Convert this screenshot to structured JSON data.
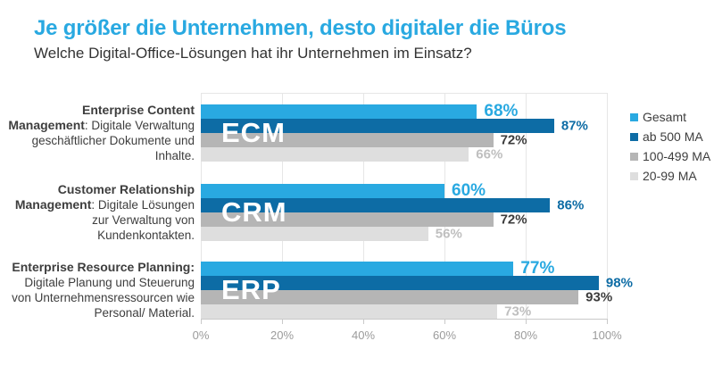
{
  "header": {
    "title": "Je größer die Unternehmen, desto digitaler die Büros",
    "subtitle": "Welche Digital-Office-Lösungen hat ihr Unternehmen im Einsatz?"
  },
  "colors": {
    "gesamt": "#29a9e1",
    "ab_500_ma": "#0d6ca5",
    "ma_100_499": "#b5b5b5",
    "ma_20_99": "#dedede",
    "title": "#29a9e1",
    "grid": "#e6e6e6",
    "axis_text": "#9b9b9b"
  },
  "chart_data": {
    "type": "bar",
    "orientation": "horizontal",
    "title": "Je größer die Unternehmen, desto digitaler die Büros",
    "subtitle": "Welche Digital-Office-Lösungen hat ihr Unternehmen im Einsatz?",
    "categories": [
      "ECM",
      "CRM",
      "ERP"
    ],
    "category_labels": [
      {
        "bold": "Enterprise Content Management",
        "rest": ": Digitale Verwaltung geschäftlicher Dokumente und Inhalte.",
        "watermark": "ECM"
      },
      {
        "bold": "Customer Relationship Management",
        "rest": ": Digitale Lösungen zur Verwaltung von Kundenkontakten.",
        "watermark": "CRM"
      },
      {
        "bold": "Enterprise Resource Planning:",
        "rest": " Digitale Planung und Steuerung von Unternehmensressourcen wie Personal/ Material.",
        "watermark": "ERP"
      }
    ],
    "series": [
      {
        "name": "Gesamt",
        "values": [
          68,
          60,
          77
        ],
        "color": "#29a9e1",
        "label_color": "#29a9e1"
      },
      {
        "name": "ab 500 MA",
        "values": [
          87,
          86,
          98
        ],
        "color": "#0d6ca5",
        "label_color": "#0d6ca5"
      },
      {
        "name": "100-499 MA",
        "values": [
          72,
          72,
          93
        ],
        "color": "#b5b5b5",
        "label_color": "#3c3c3c"
      },
      {
        "name": "20-99 MA",
        "values": [
          66,
          56,
          73
        ],
        "color": "#dedede",
        "label_color": "#bfbfbf"
      }
    ],
    "value_suffix": "%",
    "xlim": [
      0,
      100
    ],
    "x_ticks": [
      "0%",
      "20%",
      "40%",
      "60%",
      "80%",
      "100%"
    ],
    "grid": true,
    "legend_position": "right"
  }
}
